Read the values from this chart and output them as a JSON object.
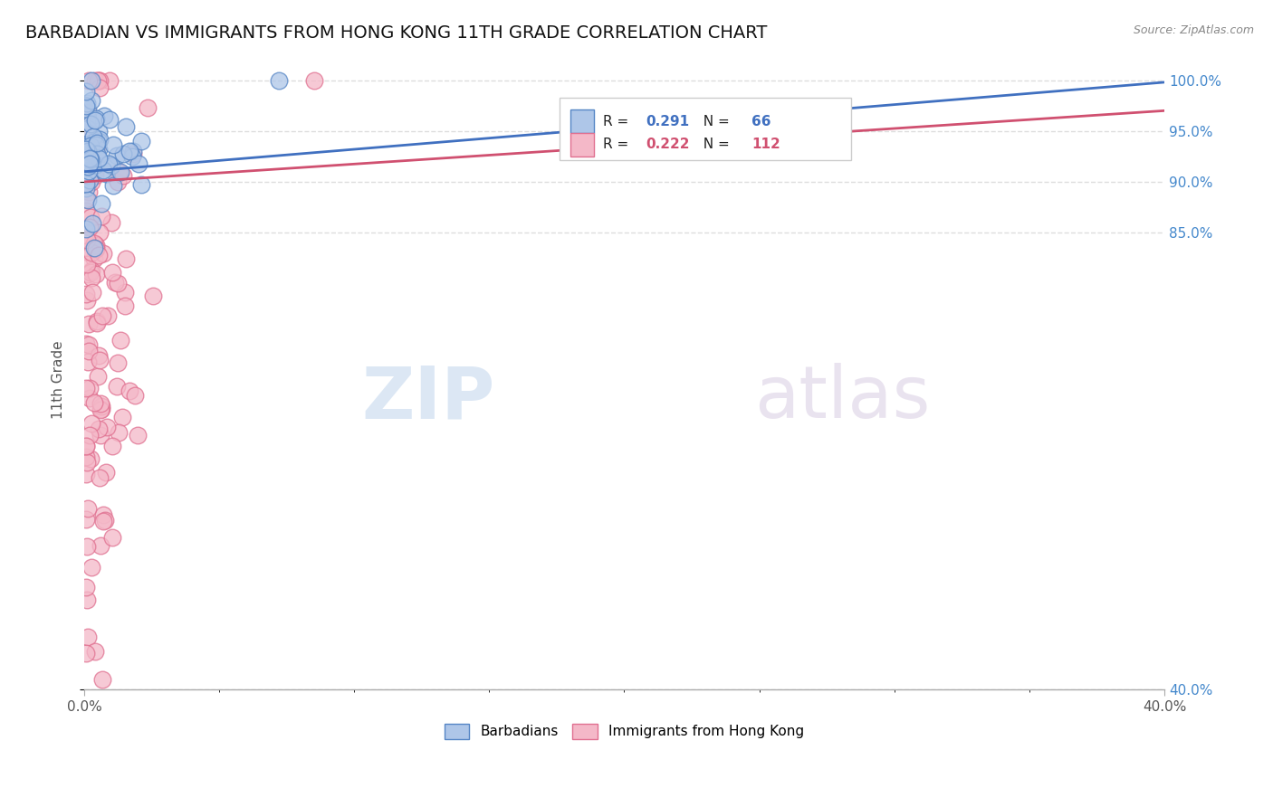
{
  "title": "BARBADIAN VS IMMIGRANTS FROM HONG KONG 11TH GRADE CORRELATION CHART",
  "source": "Source: ZipAtlas.com",
  "ylabel_label": "11th Grade",
  "blue_R": 0.291,
  "blue_N": 66,
  "pink_R": 0.222,
  "pink_N": 112,
  "blue_color": "#aec6e8",
  "pink_color": "#f4b8c8",
  "blue_edge_color": "#5585c5",
  "pink_edge_color": "#e07090",
  "blue_line_color": "#4070c0",
  "pink_line_color": "#d05070",
  "legend_blue_label": "Barbadians",
  "legend_pink_label": "Immigrants from Hong Kong",
  "watermark_zip": "ZIP",
  "watermark_atlas": "atlas",
  "background_color": "#ffffff",
  "grid_color": "#dddddd",
  "title_color": "#2255aa",
  "ytick_vals": [
    40.0,
    85.0,
    90.0,
    95.0,
    100.0
  ],
  "ytick_labels": [
    "40.0%",
    "85.0%",
    "90.0%",
    "95.0%",
    "100.0%"
  ],
  "xtick_vals": [
    0.0,
    40.0
  ],
  "xtick_labels": [
    "0.0%",
    "40.0%"
  ],
  "xlim": [
    0.0,
    40.0
  ],
  "ylim": [
    40.0,
    101.0
  ]
}
